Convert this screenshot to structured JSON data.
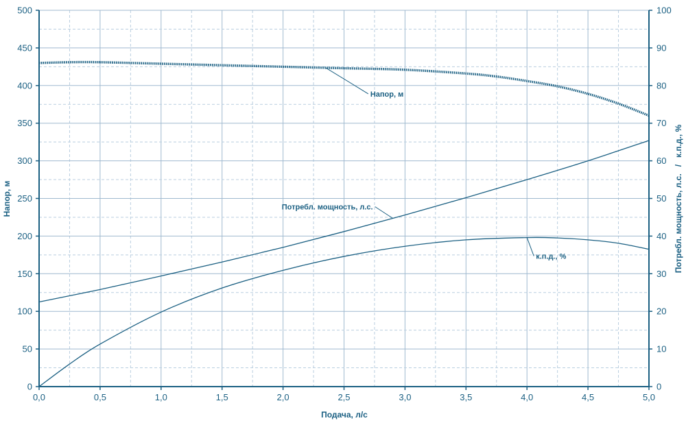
{
  "chart_data": {
    "type": "line",
    "xlabel": "Подача, л/с",
    "ylabel_left": "Напор, м",
    "ylabel_right": "Потребл. мощность, л.с.   /   к.п.д., %",
    "xlim": [
      0,
      5
    ],
    "ylim_left": [
      0,
      500
    ],
    "ylim_right": [
      0,
      100
    ],
    "x_ticks": [
      "0,0",
      "0,5",
      "1,0",
      "1,5",
      "2,0",
      "2,5",
      "3,0",
      "3,5",
      "4,0",
      "4,5",
      "5,0"
    ],
    "y_left_ticks": [
      "0",
      "50",
      "100",
      "150",
      "200",
      "250",
      "300",
      "350",
      "400",
      "450",
      "500"
    ],
    "y_right_ticks": [
      "0",
      "10",
      "20",
      "30",
      "40",
      "50",
      "60",
      "70",
      "80",
      "90",
      "100"
    ],
    "grid": true,
    "series": [
      {
        "name": "Напор, м",
        "axis": "left",
        "style": "dotted-thick",
        "x": [
          0,
          0.25,
          0.5,
          1.0,
          1.5,
          2.0,
          2.5,
          3.0,
          3.5,
          3.75,
          4.0,
          4.25,
          4.5,
          4.75,
          5.0
        ],
        "y": [
          430,
          431,
          431,
          429,
          427,
          425,
          423,
          421,
          416,
          412,
          406,
          399,
          389,
          376,
          360
        ]
      },
      {
        "name": "Потребл. мощность, л.с.",
        "axis": "right",
        "style": "solid",
        "x": [
          0,
          0.5,
          1.0,
          1.5,
          2.0,
          2.5,
          3.0,
          3.5,
          4.0,
          4.5,
          5.0
        ],
        "y": [
          22.5,
          25.8,
          29.4,
          33.1,
          37,
          41.2,
          45.6,
          50.2,
          55,
          60,
          65.4
        ]
      },
      {
        "name": "к.п.д., %",
        "axis": "right",
        "style": "solid",
        "x": [
          0,
          0.25,
          0.5,
          1.0,
          1.5,
          2.0,
          2.5,
          3.0,
          3.5,
          4.0,
          4.25,
          4.5,
          4.75,
          5.0
        ],
        "y": [
          0,
          6,
          11.3,
          19.8,
          26.2,
          30.9,
          34.6,
          37.3,
          39,
          39.6,
          39.5,
          39,
          38.1,
          36.5
        ]
      }
    ],
    "annotations": [
      {
        "text": "Напор, м",
        "series": 0,
        "anchor_x": 2.35
      },
      {
        "text": "Потребл. мощность, л.с.",
        "series": 1,
        "anchor_x": 2.9
      },
      {
        "text": "к.п.д., %",
        "series": 2,
        "anchor_x": 4.0
      }
    ]
  },
  "colors": {
    "axis": "#1a5f82",
    "line": "#1a5f82",
    "grid_major": "#9fb9cf",
    "grid_minor": "#b9cedf"
  }
}
